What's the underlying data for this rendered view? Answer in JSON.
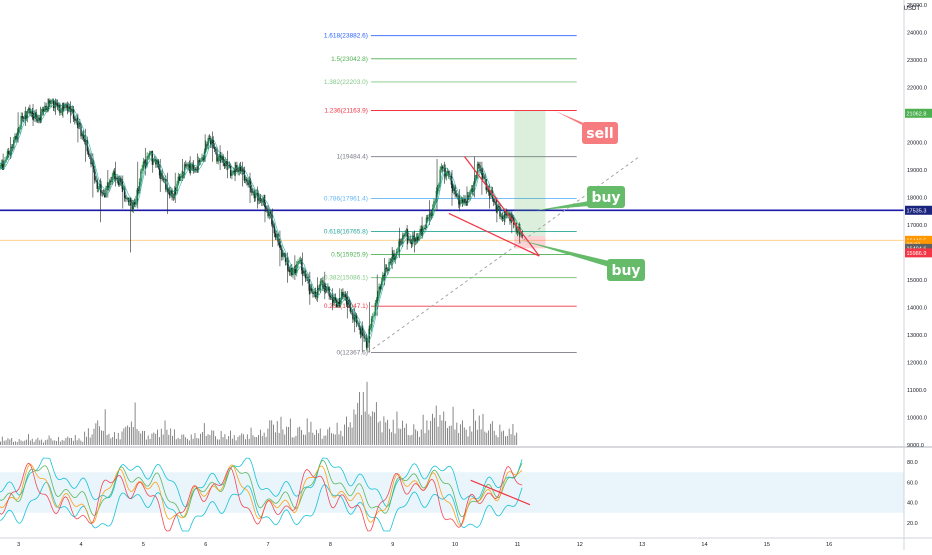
{
  "chart_data": {
    "type": "candlestick-with-indicators",
    "currency_label": "USDT",
    "price_axis": {
      "min": 9000,
      "max": 25000,
      "ticks": [
        "25000.0",
        "24000.0",
        "23000.0",
        "22000.0",
        "21000.0",
        "20000.0",
        "19000.0",
        "18000.0",
        "17000.0",
        "16000.0",
        "15000.0",
        "14000.0",
        "13000.0",
        "12000.0",
        "11000.0",
        "10000.0",
        "9000.0"
      ],
      "tick_values": [
        25000,
        24000,
        23000,
        22000,
        21000,
        20000,
        19000,
        18000,
        17000,
        16000,
        15000,
        14000,
        13000,
        12000,
        11000,
        10000,
        9000
      ]
    },
    "time_axis": {
      "labels": [
        "3",
        "4",
        "5",
        "6",
        "7",
        "8",
        "9",
        "10",
        "11",
        "12",
        "13",
        "14",
        "15",
        "16"
      ],
      "day_values": [
        3,
        4,
        5,
        6,
        7,
        8,
        9,
        10,
        11,
        12,
        13,
        14,
        15,
        16
      ],
      "range": [
        2.7,
        17.2
      ]
    },
    "price_badges": [
      {
        "label": "21062.8",
        "value": 21062.8,
        "color": "#4caf50"
      },
      {
        "label": "17535.3",
        "value": 17535.3,
        "color": "#1a237e"
      },
      {
        "label": "16442.5",
        "value": 16442.5,
        "color": "#ff9800"
      },
      {
        "label": "00:23",
        "value": 16300,
        "color": "#ff9800"
      },
      {
        "label": "16404.6",
        "value": 16150,
        "color": "#616161"
      },
      {
        "label": "15986.9",
        "value": 15986.9,
        "color": "#f23645"
      }
    ],
    "fibonacci": {
      "start_day": 8.65,
      "end_day": 11.95,
      "levels": [
        {
          "label": "1.618(23882.6)",
          "value": 23882.6,
          "color": "#2962ff"
        },
        {
          "label": "1.5(23042.8)",
          "value": 23042.8,
          "color": "#4caf50"
        },
        {
          "label": "1.382(22203.0)",
          "value": 22203.0,
          "color": "#81c784"
        },
        {
          "label": "1.236(21163.9)",
          "value": 21163.9,
          "color": "#f23645"
        },
        {
          "label": "1(19484.4)",
          "value": 19484.4,
          "color": "#787b86"
        },
        {
          "label": "0.786(17961.4)",
          "value": 17961.4,
          "color": "#64b5f6"
        },
        {
          "label": "0.618(16765.8)",
          "value": 16765.8,
          "color": "#26a69a"
        },
        {
          "label": "0.5(15925.9)",
          "value": 15925.9,
          "color": "#4caf50"
        },
        {
          "label": "0.382(15086.1)",
          "value": 15086.1,
          "color": "#81c784"
        },
        {
          "label": "0.236(14047.1)",
          "value": 14047.1,
          "color": "#f23645"
        },
        {
          "label": "0(12367.6)",
          "value": 12367.6,
          "color": "#787b86"
        }
      ]
    },
    "horizontal_lines": [
      {
        "name": "support",
        "value": 17535.3,
        "color": "#1a1aaa"
      },
      {
        "name": "last-price",
        "value": 16442.5,
        "color": "#ffcc80"
      }
    ],
    "trend_lines": [
      {
        "name": "dotted-uptrend",
        "x": [
          8.6,
          12.95
        ],
        "y": [
          12367.6,
          19480
        ],
        "color": "#9e9e9e"
      },
      {
        "name": "wedge-upper",
        "x": [
          10.15,
          11.35
        ],
        "y": [
          19490,
          15870
        ],
        "color": "#f23645"
      },
      {
        "name": "wedge-lower",
        "x": [
          9.9,
          11.35
        ],
        "y": [
          17420,
          15870
        ],
        "color": "#f23645"
      }
    ],
    "position_box": {
      "x": [
        10.95,
        11.45
      ],
      "profit": [
        16600,
        21150
      ],
      "loss": [
        16150,
        16600
      ]
    },
    "callouts": [
      {
        "text": "sell",
        "target_day": 11.6,
        "target_value": 21150,
        "color": "#f77c80"
      },
      {
        "text": "buy",
        "target_day": 11.3,
        "target_value": 17530,
        "color": "#66bb6a"
      },
      {
        "text": "buy",
        "target_day": 11.05,
        "target_value": 16450,
        "color": "#66bb6a"
      }
    ],
    "candles": [
      [
        2.7,
        19050,
        19600,
        19000,
        19500
      ],
      [
        2.82,
        19500,
        20200,
        19400,
        20100
      ],
      [
        2.94,
        20100,
        21100,
        20000,
        20900
      ],
      [
        3.06,
        20900,
        21300,
        20600,
        21150
      ],
      [
        3.18,
        21150,
        21400,
        20600,
        20800
      ],
      [
        3.3,
        20800,
        21300,
        20700,
        21250
      ],
      [
        3.42,
        21250,
        21600,
        21100,
        21500
      ],
      [
        3.54,
        21500,
        21600,
        21000,
        21200
      ],
      [
        3.66,
        21200,
        21450,
        20900,
        21350
      ],
      [
        3.78,
        21350,
        21500,
        20700,
        20900
      ],
      [
        3.9,
        20900,
        21050,
        20000,
        20300
      ],
      [
        4.02,
        20300,
        20500,
        19300,
        19500
      ],
      [
        4.14,
        19500,
        19600,
        18000,
        18400
      ],
      [
        4.26,
        18400,
        18700,
        17100,
        18100
      ],
      [
        4.38,
        18100,
        19000,
        18000,
        18800
      ],
      [
        4.5,
        18800,
        19300,
        18400,
        18600
      ],
      [
        4.62,
        18600,
        18800,
        17600,
        17900
      ],
      [
        4.74,
        17900,
        18000,
        16000,
        17700
      ],
      [
        4.86,
        17700,
        19300,
        17600,
        19100
      ],
      [
        4.98,
        19100,
        19800,
        18800,
        19600
      ],
      [
        5.1,
        19600,
        19700,
        18900,
        19200
      ],
      [
        5.22,
        19200,
        19400,
        18200,
        18500
      ],
      [
        5.34,
        18500,
        18900,
        17400,
        18000
      ],
      [
        5.46,
        18000,
        18900,
        17800,
        18700
      ],
      [
        5.58,
        18700,
        19400,
        18600,
        19200
      ],
      [
        5.7,
        19200,
        19500,
        18800,
        19000
      ],
      [
        5.82,
        19000,
        19600,
        18900,
        19400
      ],
      [
        5.94,
        19400,
        20300,
        19300,
        20200
      ],
      [
        6.06,
        20200,
        20400,
        19300,
        19500
      ],
      [
        6.18,
        19500,
        19900,
        19000,
        19300
      ],
      [
        6.3,
        19300,
        19700,
        18700,
        18900
      ],
      [
        6.42,
        18900,
        19300,
        18600,
        19100
      ],
      [
        6.54,
        19100,
        19300,
        18400,
        18600
      ],
      [
        6.66,
        18600,
        18900,
        17800,
        18100
      ],
      [
        6.78,
        18100,
        18400,
        17600,
        17900
      ],
      [
        6.9,
        17900,
        18100,
        17100,
        17400
      ],
      [
        7.02,
        17400,
        17600,
        16200,
        16500
      ],
      [
        7.14,
        16500,
        16800,
        15500,
        15800
      ],
      [
        7.26,
        15800,
        16000,
        14900,
        15200
      ],
      [
        7.38,
        15200,
        15900,
        15000,
        15700
      ],
      [
        7.5,
        15700,
        16000,
        14800,
        15000
      ],
      [
        7.62,
        15000,
        15300,
        14100,
        14400
      ],
      [
        7.74,
        14400,
        15100,
        14200,
        14900
      ],
      [
        7.86,
        14900,
        15300,
        14300,
        14500
      ],
      [
        7.98,
        14500,
        14700,
        13900,
        14100
      ],
      [
        8.1,
        14100,
        14700,
        14000,
        14500
      ],
      [
        8.22,
        14500,
        14600,
        13600,
        13800
      ],
      [
        8.34,
        13800,
        14000,
        13100,
        13300
      ],
      [
        8.46,
        13300,
        13500,
        12400,
        12700
      ],
      [
        8.58,
        12700,
        14200,
        12367,
        13900
      ],
      [
        8.7,
        13900,
        15200,
        13700,
        15000
      ],
      [
        8.82,
        15000,
        15800,
        14800,
        15600
      ],
      [
        8.94,
        15600,
        16200,
        15400,
        16000
      ],
      [
        9.06,
        16000,
        16900,
        15800,
        16700
      ],
      [
        9.18,
        16700,
        17000,
        16100,
        16400
      ],
      [
        9.3,
        16400,
        16800,
        16000,
        16600
      ],
      [
        9.42,
        16600,
        17300,
        16500,
        17100
      ],
      [
        9.54,
        17100,
        17900,
        17000,
        17700
      ],
      [
        9.66,
        17700,
        19400,
        17500,
        19100
      ],
      [
        9.78,
        19100,
        19300,
        18500,
        18800
      ],
      [
        9.9,
        18800,
        19000,
        17700,
        18000
      ],
      [
        10.02,
        18000,
        18300,
        17500,
        17800
      ],
      [
        10.14,
        17800,
        18400,
        17700,
        18200
      ],
      [
        10.26,
        18200,
        19490,
        18000,
        19200
      ],
      [
        10.38,
        19200,
        19300,
        18100,
        18400
      ],
      [
        10.5,
        18400,
        18500,
        17600,
        17900
      ],
      [
        10.62,
        17900,
        18000,
        17100,
        17300
      ],
      [
        10.74,
        17300,
        17600,
        17000,
        17400
      ],
      [
        10.86,
        17400,
        17500,
        16700,
        16900
      ],
      [
        10.98,
        16900,
        17100,
        16350,
        16500
      ]
    ],
    "volume_heights": [
      0.12,
      0.1,
      0.08,
      0.14,
      0.11,
      0.09,
      0.13,
      0.1,
      0.12,
      0.15,
      0.1,
      0.22,
      0.35,
      0.48,
      0.2,
      0.18,
      0.3,
      0.55,
      0.32,
      0.18,
      0.2,
      0.28,
      0.33,
      0.2,
      0.16,
      0.15,
      0.18,
      0.3,
      0.22,
      0.18,
      0.2,
      0.16,
      0.18,
      0.22,
      0.2,
      0.26,
      0.42,
      0.38,
      0.35,
      0.25,
      0.3,
      0.36,
      0.24,
      0.22,
      0.3,
      0.28,
      0.4,
      0.62,
      1.0,
      0.8,
      0.58,
      0.42,
      0.38,
      0.46,
      0.3,
      0.28,
      0.4,
      0.5,
      0.62,
      0.45,
      0.48,
      0.36,
      0.3,
      0.52,
      0.4,
      0.34,
      0.28,
      0.24,
      0.3,
      0.26
    ],
    "oscillator": {
      "axis_ticks": [
        "80.0",
        "60.0",
        "40.0",
        "20.0"
      ],
      "tick_values": [
        80,
        60,
        40,
        20
      ],
      "min": 8,
      "max": 92,
      "band": [
        30,
        70
      ],
      "trend_line": {
        "x": [
          10.25,
          11.2
        ],
        "y": [
          62,
          38
        ],
        "color": "#f23645"
      }
    }
  }
}
